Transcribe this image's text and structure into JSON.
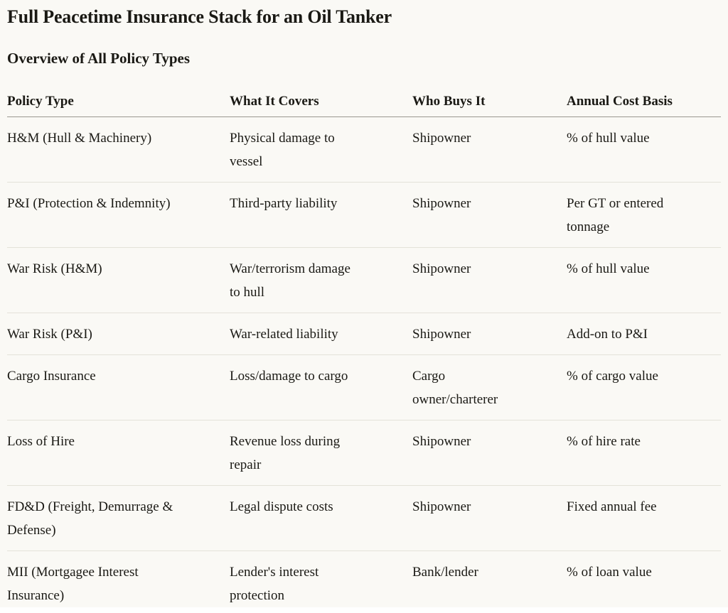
{
  "page": {
    "title": "Full Peacetime Insurance Stack for an Oil Tanker",
    "subtitle": "Overview of All Policy Types"
  },
  "table": {
    "columns": [
      "Policy Type",
      "What It Covers",
      "Who Buys It",
      "Annual Cost Basis"
    ],
    "rows": [
      {
        "policy_type": "H&M (Hull & Machinery)",
        "covers": "Physical damage to vessel",
        "buyer": "Shipowner",
        "cost_basis": "% of hull value"
      },
      {
        "policy_type": "P&I (Protection & Indemnity)",
        "covers": "Third-party liability",
        "buyer": "Shipowner",
        "cost_basis": "Per GT or entered tonnage"
      },
      {
        "policy_type": "War Risk (H&M)",
        "covers": "War/terrorism damage to hull",
        "buyer": "Shipowner",
        "cost_basis": "% of hull value"
      },
      {
        "policy_type": "War Risk (P&I)",
        "covers": "War-related liability",
        "buyer": "Shipowner",
        "cost_basis": "Add-on to P&I"
      },
      {
        "policy_type": "Cargo Insurance",
        "covers": "Loss/damage to cargo",
        "buyer": "Cargo owner/charterer",
        "cost_basis": "% of cargo value"
      },
      {
        "policy_type": "Loss of Hire",
        "covers": "Revenue loss during repair",
        "buyer": "Shipowner",
        "cost_basis": "% of hire rate"
      },
      {
        "policy_type": "FD&D (Freight, Demurrage & Defense)",
        "covers": "Legal dispute costs",
        "buyer": "Shipowner",
        "cost_basis": "Fixed annual fee"
      },
      {
        "policy_type": "MII (Mortgagee Interest Insurance)",
        "covers": "Lender's interest protection",
        "buyer": "Bank/lender",
        "cost_basis": "% of loan value"
      }
    ]
  },
  "colors": {
    "background": "#faf9f5",
    "text": "#1a1914",
    "header_border": "#9a988f",
    "row_border": "#e4e2d9",
    "page_edge": "#ffffff"
  }
}
